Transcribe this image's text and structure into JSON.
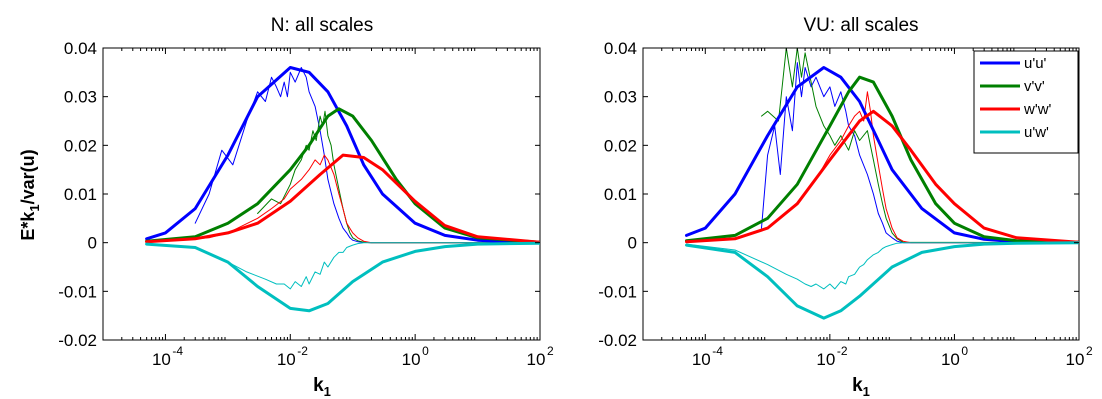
{
  "chart_data": [
    {
      "type": "line",
      "title": "N: all scales",
      "xlabel": "k",
      "xlabel_sub": "1",
      "ylabel": "E*k",
      "ylabel_sub": "1",
      "ylabel_suffix": "/var(u)",
      "xscale": "log",
      "xlim": [
        1e-05,
        100
      ],
      "ylim": [
        -0.02,
        0.04
      ],
      "xtick_labels": [
        "10",
        "10",
        "10",
        "10"
      ],
      "xtick_exps": [
        "-4",
        "-2",
        "0",
        "2"
      ],
      "xtick_values": [
        0.0001,
        0.01,
        1,
        100
      ],
      "ytick_labels": [
        "-0.02",
        "-0.01",
        "0",
        "0.01",
        "0.02",
        "0.03",
        "0.04"
      ],
      "ytick_values": [
        -0.02,
        -0.01,
        0,
        0.01,
        0.02,
        0.03,
        0.04
      ],
      "grid": false,
      "legend": false,
      "series": [
        {
          "name": "u'u'",
          "color": "#0000ff",
          "style": "model",
          "x": [
            5e-05,
            0.0001,
            0.0003,
            0.001,
            0.003,
            0.01,
            0.02,
            0.04,
            0.08,
            0.15,
            0.3,
            1,
            3,
            10,
            30,
            100
          ],
          "y": [
            0.0008,
            0.002,
            0.007,
            0.018,
            0.03,
            0.036,
            0.035,
            0.031,
            0.024,
            0.016,
            0.01,
            0.004,
            0.0015,
            0.0005,
            0.0002,
            0.0001
          ]
        },
        {
          "name": "v'v'",
          "color": "#007f00",
          "style": "model",
          "x": [
            5e-05,
            0.0003,
            0.001,
            0.003,
            0.01,
            0.02,
            0.04,
            0.06,
            0.1,
            0.2,
            0.5,
            1,
            3,
            10,
            100
          ],
          "y": [
            0.0003,
            0.0012,
            0.004,
            0.008,
            0.015,
            0.02,
            0.026,
            0.0275,
            0.026,
            0.021,
            0.013,
            0.008,
            0.003,
            0.001,
            0.0001
          ]
        },
        {
          "name": "w'w'",
          "color": "#ff0000",
          "style": "model",
          "x": [
            5e-05,
            0.0003,
            0.001,
            0.003,
            0.01,
            0.03,
            0.07,
            0.15,
            0.3,
            1,
            3,
            10,
            100
          ],
          "y": [
            0.0002,
            0.0008,
            0.002,
            0.004,
            0.0085,
            0.014,
            0.018,
            0.0175,
            0.015,
            0.0085,
            0.0035,
            0.0012,
            0.0001
          ]
        },
        {
          "name": "u'w'",
          "color": "#00bfbf",
          "style": "model",
          "x": [
            5e-05,
            0.0003,
            0.001,
            0.003,
            0.01,
            0.02,
            0.04,
            0.1,
            0.3,
            1,
            3,
            10,
            100
          ],
          "y": [
            -0.0003,
            -0.001,
            -0.004,
            -0.009,
            -0.0135,
            -0.014,
            -0.0125,
            -0.008,
            -0.004,
            -0.0018,
            -0.0008,
            -0.0003,
            -0.0001
          ]
        },
        {
          "name": "u'u'",
          "color": "#0000ff",
          "style": "measured",
          "x": [
            0.0003,
            0.0005,
            0.0008,
            0.0012,
            0.002,
            0.003,
            0.004,
            0.005,
            0.006,
            0.007,
            0.008,
            0.009,
            0.01,
            0.012,
            0.015,
            0.018,
            0.02,
            0.025,
            0.03,
            0.035,
            0.04,
            0.05,
            0.06,
            0.07,
            0.08,
            0.09,
            0.1,
            0.12,
            0.15,
            0.2,
            0.5,
            100
          ],
          "y": [
            0.004,
            0.01,
            0.019,
            0.016,
            0.025,
            0.031,
            0.029,
            0.034,
            0.032,
            0.03,
            0.033,
            0.03,
            0.035,
            0.033,
            0.036,
            0.034,
            0.031,
            0.028,
            0.023,
            0.018,
            0.013,
            0.008,
            0.005,
            0.003,
            0.002,
            0.001,
            0.0005,
            0.0002,
            0.0001,
            0,
            0,
            0
          ]
        },
        {
          "name": "v'v'",
          "color": "#007f00",
          "style": "measured",
          "x": [
            0.003,
            0.005,
            0.007,
            0.01,
            0.012,
            0.015,
            0.018,
            0.02,
            0.023,
            0.026,
            0.03,
            0.033,
            0.036,
            0.04,
            0.045,
            0.05,
            0.06,
            0.07,
            0.08,
            0.09,
            0.1,
            0.12,
            0.15,
            0.2,
            100
          ],
          "y": [
            0.006,
            0.009,
            0.008,
            0.012,
            0.015,
            0.017,
            0.02,
            0.019,
            0.023,
            0.021,
            0.026,
            0.024,
            0.027,
            0.022,
            0.02,
            0.016,
            0.011,
            0.007,
            0.004,
            0.002,
            0.001,
            0.0004,
            0.0001,
            0,
            0
          ]
        },
        {
          "name": "w'w'",
          "color": "#ff0000",
          "style": "measured",
          "x": [
            0.0001,
            0.0005,
            0.001,
            0.003,
            0.005,
            0.008,
            0.01,
            0.015,
            0.02,
            0.025,
            0.03,
            0.035,
            0.04,
            0.05,
            0.06,
            0.07,
            0.08,
            0.1,
            0.12,
            0.15,
            0.2,
            100
          ],
          "y": [
            0.0003,
            0.001,
            0.002,
            0.005,
            0.007,
            0.009,
            0.011,
            0.013,
            0.015,
            0.017,
            0.016,
            0.018,
            0.017,
            0.014,
            0.01,
            0.007,
            0.004,
            0.002,
            0.001,
            0.0003,
            0,
            0
          ]
        },
        {
          "name": "u'w'",
          "color": "#00bfbf",
          "style": "measured",
          "x": [
            5e-05,
            0.0003,
            0.001,
            0.002,
            0.004,
            0.006,
            0.008,
            0.01,
            0.012,
            0.015,
            0.018,
            0.02,
            0.025,
            0.03,
            0.035,
            0.04,
            0.05,
            0.06,
            0.07,
            0.08,
            0.1,
            0.12,
            0.15,
            0.2,
            100
          ],
          "y": [
            -0.0003,
            -0.001,
            -0.004,
            -0.006,
            -0.0075,
            -0.0085,
            -0.0085,
            -0.0095,
            -0.008,
            -0.009,
            -0.007,
            -0.0085,
            -0.006,
            -0.0065,
            -0.004,
            -0.005,
            -0.003,
            -0.002,
            -0.002,
            -0.001,
            -0.0005,
            -0.0002,
            0,
            0,
            0
          ]
        }
      ]
    },
    {
      "type": "line",
      "title": "VU: all scales",
      "xlabel": "k",
      "xlabel_sub": "1",
      "ylabel": "",
      "xscale": "log",
      "xlim": [
        1e-05,
        100
      ],
      "ylim": [
        -0.02,
        0.04
      ],
      "xtick_labels": [
        "10",
        "10",
        "10",
        "10"
      ],
      "xtick_exps": [
        "-4",
        "-2",
        "0",
        "2"
      ],
      "xtick_values": [
        0.0001,
        0.01,
        1,
        100
      ],
      "ytick_labels": [
        "-0.02",
        "-0.01",
        "0",
        "0.01",
        "0.02",
        "0.03",
        "0.04"
      ],
      "ytick_values": [
        -0.02,
        -0.01,
        0,
        0.01,
        0.02,
        0.03,
        0.04
      ],
      "grid": false,
      "legend": "top-right",
      "legend_entries": [
        {
          "label": "u'u'",
          "color": "#0000ff"
        },
        {
          "label": "v'v'",
          "color": "#007f00"
        },
        {
          "label": "w'w'",
          "color": "#ff0000"
        },
        {
          "label": "u'w'",
          "color": "#00bfbf"
        }
      ],
      "series": [
        {
          "name": "u'u'",
          "color": "#0000ff",
          "style": "model",
          "x": [
            5e-05,
            0.0001,
            0.0003,
            0.001,
            0.003,
            0.008,
            0.015,
            0.03,
            0.06,
            0.1,
            0.3,
            1,
            3,
            10,
            30,
            100
          ],
          "y": [
            0.0015,
            0.003,
            0.01,
            0.022,
            0.032,
            0.036,
            0.034,
            0.029,
            0.021,
            0.015,
            0.007,
            0.002,
            0.0007,
            0.0002,
            0.0001,
            0.0001
          ]
        },
        {
          "name": "v'v'",
          "color": "#007f00",
          "style": "model",
          "x": [
            5e-05,
            0.0003,
            0.001,
            0.003,
            0.01,
            0.02,
            0.03,
            0.05,
            0.1,
            0.2,
            0.5,
            1,
            3,
            10,
            100
          ],
          "y": [
            0.0004,
            0.0015,
            0.005,
            0.012,
            0.024,
            0.031,
            0.034,
            0.033,
            0.026,
            0.017,
            0.008,
            0.004,
            0.0012,
            0.0004,
            0.0001
          ]
        },
        {
          "name": "w'w'",
          "color": "#ff0000",
          "style": "model",
          "x": [
            5e-05,
            0.0003,
            0.001,
            0.003,
            0.01,
            0.03,
            0.05,
            0.1,
            0.2,
            0.5,
            1,
            3,
            10,
            100
          ],
          "y": [
            0.0002,
            0.0008,
            0.003,
            0.008,
            0.017,
            0.025,
            0.027,
            0.024,
            0.019,
            0.012,
            0.008,
            0.003,
            0.001,
            0.0001
          ]
        },
        {
          "name": "u'w'",
          "color": "#00bfbf",
          "style": "model",
          "x": [
            5e-05,
            0.0003,
            0.001,
            0.003,
            0.008,
            0.015,
            0.03,
            0.1,
            0.3,
            1,
            3,
            10,
            100
          ],
          "y": [
            -0.0005,
            -0.002,
            -0.007,
            -0.013,
            -0.0155,
            -0.014,
            -0.011,
            -0.005,
            -0.002,
            -0.0008,
            -0.0003,
            -0.0001,
            0
          ]
        },
        {
          "name": "u'u'",
          "color": "#0000ff",
          "style": "measured",
          "x": [
            0.0008,
            0.001,
            0.0013,
            0.0016,
            0.002,
            0.0025,
            0.003,
            0.0035,
            0.004,
            0.005,
            0.006,
            0.008,
            0.01,
            0.012,
            0.015,
            0.018,
            0.02,
            0.025,
            0.03,
            0.04,
            0.05,
            0.06,
            0.07,
            0.08,
            0.1,
            0.12,
            0.15,
            100
          ],
          "y": [
            0.003,
            0.018,
            0.024,
            0.014,
            0.03,
            0.023,
            0.037,
            0.03,
            0.036,
            0.032,
            0.034,
            0.03,
            0.032,
            0.028,
            0.031,
            0.027,
            0.024,
            0.022,
            0.018,
            0.014,
            0.01,
            0.006,
            0.004,
            0.002,
            0.001,
            0.0003,
            0,
            0
          ]
        },
        {
          "name": "v'v'",
          "color": "#007f00",
          "style": "measured",
          "x": [
            0.0008,
            0.001,
            0.0015,
            0.002,
            0.0025,
            0.003,
            0.0035,
            0.004,
            0.005,
            0.006,
            0.008,
            0.01,
            0.012,
            0.015,
            0.02,
            0.025,
            0.03,
            0.04,
            0.05,
            0.06,
            0.07,
            0.08,
            0.1,
            0.12,
            0.15,
            100
          ],
          "y": [
            0.026,
            0.027,
            0.025,
            0.04,
            0.032,
            0.04,
            0.034,
            0.039,
            0.033,
            0.028,
            0.024,
            0.022,
            0.02,
            0.022,
            0.019,
            0.023,
            0.021,
            0.023,
            0.017,
            0.012,
            0.008,
            0.005,
            0.002,
            0.0008,
            0.0001,
            0
          ]
        },
        {
          "name": "w'w'",
          "color": "#ff0000",
          "style": "measured",
          "x": [
            0.001,
            0.003,
            0.006,
            0.01,
            0.015,
            0.02,
            0.025,
            0.03,
            0.035,
            0.04,
            0.045,
            0.05,
            0.06,
            0.07,
            0.08,
            0.1,
            0.12,
            0.15,
            0.2,
            100
          ],
          "y": [
            0.003,
            0.008,
            0.013,
            0.018,
            0.021,
            0.024,
            0.026,
            0.027,
            0.025,
            0.031,
            0.027,
            0.022,
            0.016,
            0.011,
            0.007,
            0.003,
            0.001,
            0.0003,
            0,
            0
          ]
        },
        {
          "name": "u'w'",
          "color": "#00bfbf",
          "style": "measured",
          "x": [
            5e-05,
            0.0003,
            0.001,
            0.002,
            0.003,
            0.004,
            0.005,
            0.006,
            0.008,
            0.01,
            0.012,
            0.015,
            0.018,
            0.02,
            0.025,
            0.03,
            0.035,
            0.04,
            0.05,
            0.06,
            0.07,
            0.08,
            0.1,
            0.12,
            0.15,
            100
          ],
          "y": [
            -0.0003,
            -0.0015,
            -0.0045,
            -0.0065,
            -0.0075,
            -0.0085,
            -0.009,
            -0.0085,
            -0.0095,
            -0.0085,
            -0.0095,
            -0.008,
            -0.0085,
            -0.007,
            -0.0065,
            -0.005,
            -0.0045,
            -0.0035,
            -0.0025,
            -0.002,
            -0.0012,
            -0.0008,
            -0.0004,
            -0.0001,
            0,
            0
          ]
        }
      ]
    }
  ]
}
